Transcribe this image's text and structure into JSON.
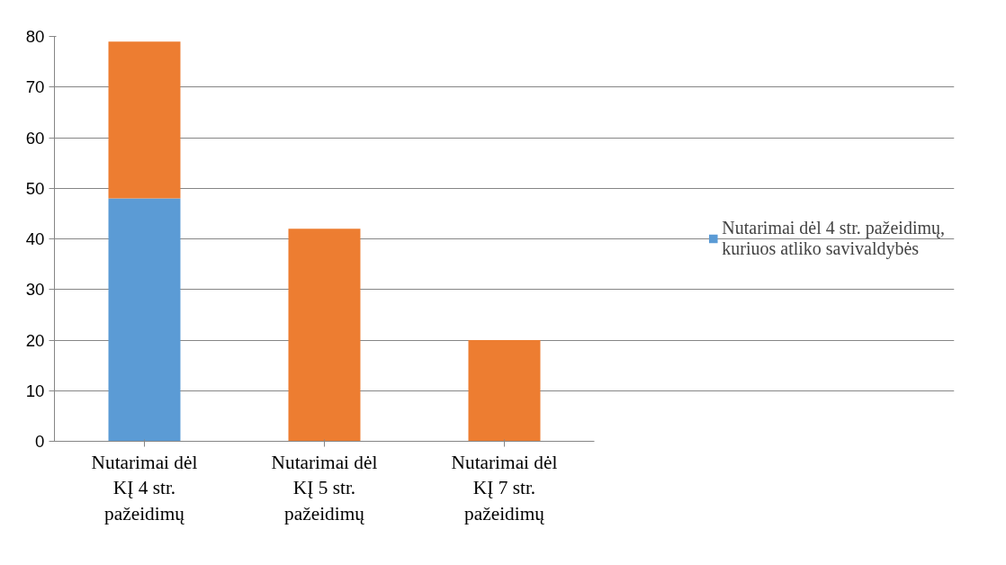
{
  "chart_data": {
    "type": "bar",
    "stacked": true,
    "categories": [
      "Nutarimai dėl KĮ 4 str. pažeidimų",
      "Nutarimai dėl KĮ 5 str. pažeidimų",
      "Nutarimai dėl KĮ 7 str. pažeidimų"
    ],
    "series": [
      {
        "name": "Nutarimai dėl 4 str. pažeidimų, kuriuos atliko savivaldybės",
        "color": "#5b9bd5",
        "values": [
          48,
          0,
          0
        ]
      },
      {
        "color": "#ed7d31",
        "values": [
          31,
          42,
          20
        ]
      }
    ],
    "ylim": [
      0,
      80
    ],
    "yticks": [
      0,
      10,
      20,
      30,
      40,
      50,
      60,
      70,
      80
    ],
    "grid": "y",
    "legend": "right"
  }
}
